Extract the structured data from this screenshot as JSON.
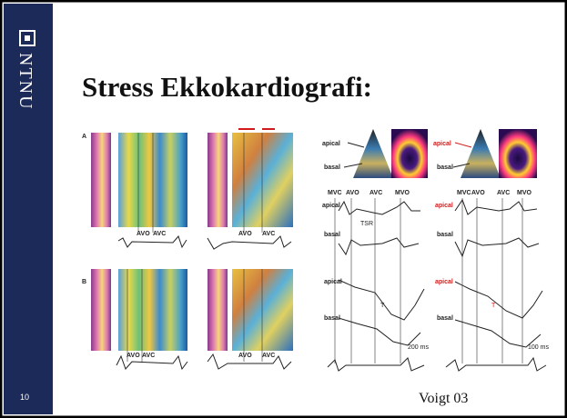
{
  "sidebar": {
    "logo_text": "NTNU",
    "page_number": "10"
  },
  "title": "Stress Ekkokardiografi:",
  "figure": {
    "panel_labels": [
      "A",
      "B"
    ],
    "valve_events": [
      "AVO",
      "AVC",
      "MVC",
      "MVO"
    ],
    "segments": [
      "apical",
      "basal"
    ],
    "annotations": [
      "TSR",
      "T",
      "T"
    ],
    "scale_bars": [
      "200 ms",
      "100 ms"
    ]
  },
  "citation": "Voigt 03"
}
